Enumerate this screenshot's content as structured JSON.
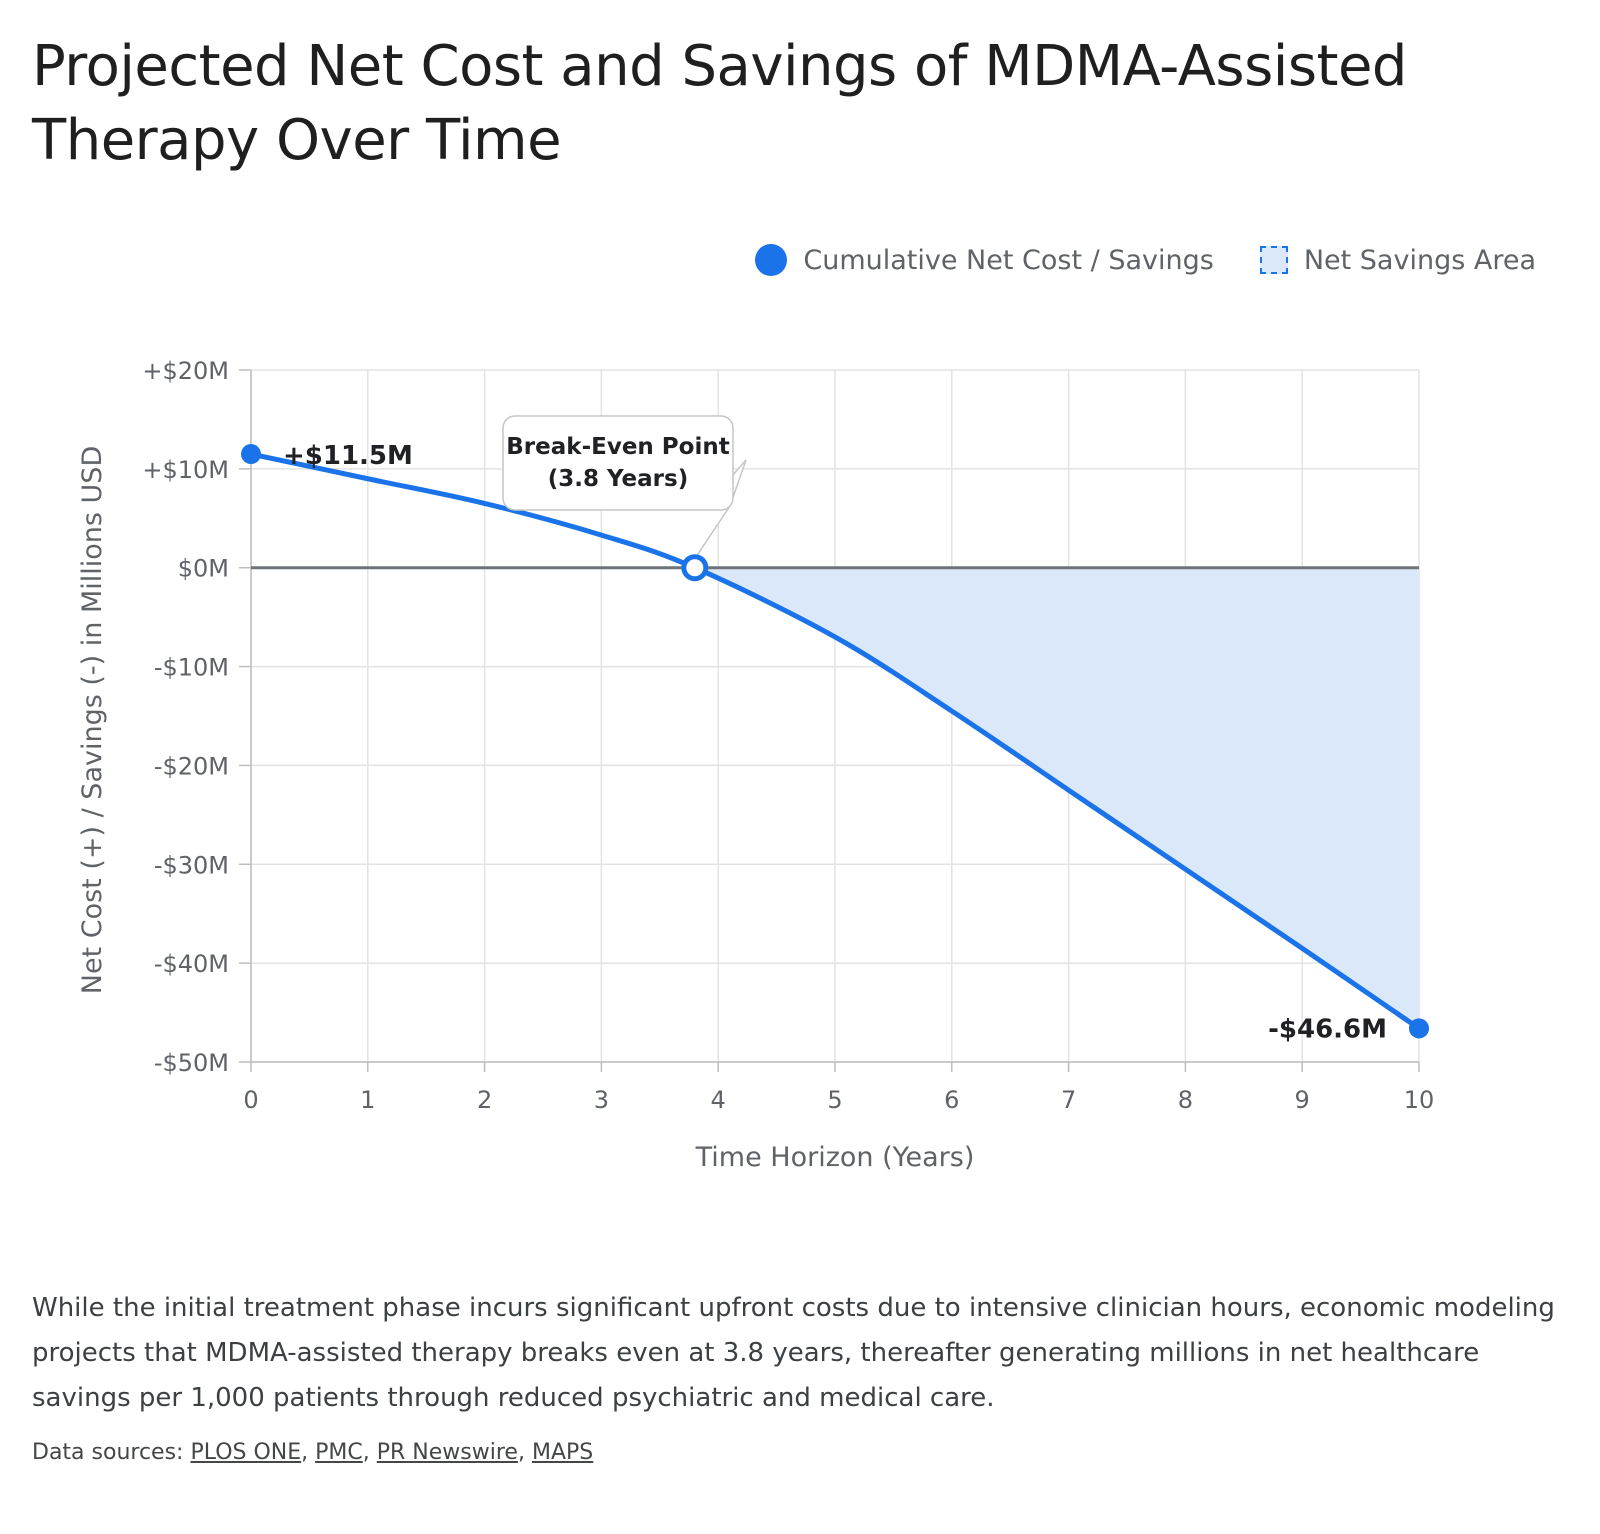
{
  "title": "Projected Net Cost and Savings of MDMA-Assisted Therapy Over Time",
  "legend": {
    "series_label": "Cumulative Net Cost / Savings",
    "area_label": "Net Savings Area"
  },
  "chart_data": {
    "type": "area",
    "xlabel": "Time Horizon (Years)",
    "ylabel": "Net Cost (+) / Savings (-) in Millions USD",
    "xlim": [
      0,
      10
    ],
    "ylim": [
      -50,
      20
    ],
    "x_ticks": [
      0,
      1,
      2,
      3,
      4,
      5,
      6,
      7,
      8,
      9,
      10
    ],
    "y_ticks": [
      20,
      10,
      0,
      -10,
      -20,
      -30,
      -40,
      -50
    ],
    "y_tick_labels": [
      "+$20M",
      "+$10M",
      "$0M",
      "-$10M",
      "-$20M",
      "-$30M",
      "-$40M",
      "-$50M"
    ],
    "grid": true,
    "legend_position": "top-right",
    "series": [
      {
        "name": "Cumulative Net Cost / Savings",
        "color": "#1a73e8",
        "x": [
          0,
          1,
          2,
          3,
          3.8,
          5,
          6,
          7,
          8,
          9,
          10
        ],
        "y": [
          11.5,
          9.0,
          6.5,
          3.3,
          0,
          -7.0,
          -14.5,
          -22.5,
          -30.5,
          -38.5,
          -46.6
        ]
      }
    ],
    "shaded_area": {
      "label": "Net Savings Area",
      "from_x": 3.8,
      "to_x": 10,
      "color": "#dbe8f9"
    },
    "annotations": {
      "start": {
        "x": 0,
        "y": 11.5,
        "text": "+$11.5M"
      },
      "end": {
        "x": 10,
        "y": -46.6,
        "text": "-$46.6M"
      },
      "break_even": {
        "x": 3.8,
        "y": 0,
        "line1": "Break-Even Point",
        "line2": "(3.8 Years)"
      }
    }
  },
  "caption": "While the initial treatment phase incurs significant upfront costs due to intensive clinician hours, economic modeling projects that MDMA-assisted therapy breaks even at 3.8 years, thereafter generating millions in net healthcare savings per 1,000 patients through reduced psychiatric and medical care.",
  "sources": {
    "label": "Data sources:",
    "links": [
      "PLOS ONE",
      "PMC",
      "PR Newswire",
      "MAPS"
    ]
  }
}
